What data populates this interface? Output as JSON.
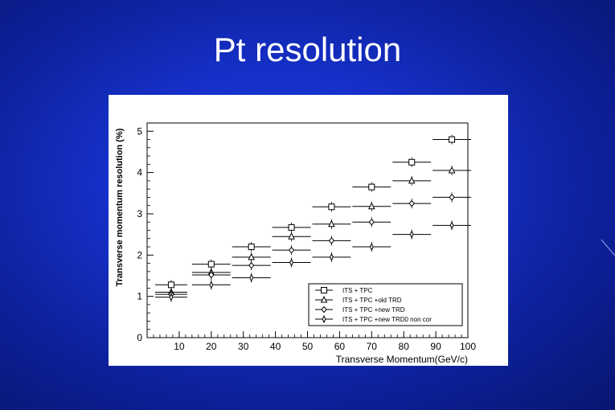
{
  "slide": {
    "title": "Pt resolution"
  },
  "chart_data": {
    "type": "scatter",
    "xlabel": "Transverse Momentum(GeV/c)",
    "ylabel": "Transverse momentum resolution (%)",
    "xlim": [
      0,
      100
    ],
    "ylim": [
      0,
      5.2
    ],
    "x_ticks": [
      "10",
      "20",
      "30",
      "40",
      "50",
      "60",
      "70",
      "80",
      "90",
      "100"
    ],
    "y_ticks": [
      "0",
      "1",
      "2",
      "3",
      "4",
      "5"
    ],
    "grid": false,
    "legend_position": "bottom-right",
    "series": [
      {
        "name": "ITS + TPC",
        "marker": "square",
        "x": [
          7.5,
          20,
          32.5,
          45,
          57.5,
          70,
          82.5,
          95
        ],
        "xerr": [
          5,
          6,
          6,
          6,
          6,
          6,
          6,
          6
        ],
        "y": [
          1.28,
          1.78,
          2.2,
          2.67,
          3.17,
          3.65,
          4.25,
          4.8
        ]
      },
      {
        "name": "ITS + TPC +old TRD",
        "marker": "triangle",
        "x": [
          7.5,
          20,
          32.5,
          45,
          57.5,
          70,
          82.5,
          95
        ],
        "xerr": [
          5,
          6,
          6,
          6,
          6,
          6,
          6,
          6
        ],
        "y": [
          1.1,
          1.58,
          1.95,
          2.45,
          2.75,
          3.18,
          3.8,
          4.05
        ]
      },
      {
        "name": "ITS + TPC +new TRD",
        "marker": "diamond",
        "x": [
          7.5,
          20,
          32.5,
          45,
          57.5,
          70,
          82.5,
          95
        ],
        "xerr": [
          5,
          6,
          6,
          6,
          6,
          6,
          6,
          6
        ],
        "y": [
          1.05,
          1.52,
          1.75,
          2.12,
          2.35,
          2.8,
          3.25,
          3.4
        ]
      },
      {
        "name": "ITS + TPC +new TRD0 non cor",
        "marker": "thin-diamond",
        "x": [
          7.5,
          20,
          32.5,
          45,
          57.5,
          70,
          82.5,
          95
        ],
        "xerr": [
          5,
          6,
          6,
          6,
          6,
          6,
          6,
          6
        ],
        "y": [
          0.98,
          1.28,
          1.45,
          1.82,
          1.95,
          2.2,
          2.5,
          2.72
        ]
      }
    ]
  }
}
